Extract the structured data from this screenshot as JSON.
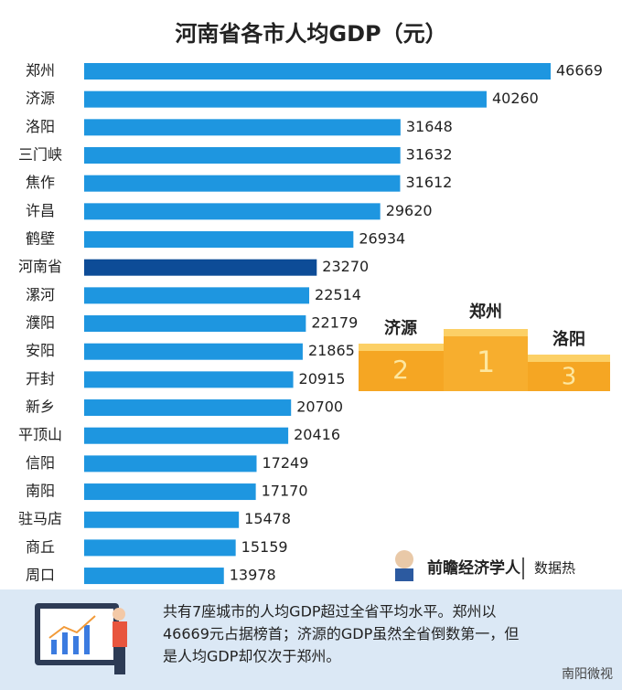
{
  "chart_data": {
    "type": "hbar",
    "title": "河南省各市人均GDP（元）",
    "categories": [
      "郑州",
      "济源",
      "洛阳",
      "三门峡",
      "焦作",
      "许昌",
      "鹤壁",
      "河南省",
      "漯河",
      "濮阳",
      "安阳",
      "开封",
      "新乡",
      "平顶山",
      "信阳",
      "南阳",
      "驻马店",
      "商丘",
      "周口"
    ],
    "values": [
      46669,
      40260,
      31648,
      31632,
      31612,
      29620,
      26934,
      23270,
      22514,
      22179,
      21865,
      20915,
      20700,
      20416,
      17249,
      17170,
      15478,
      15159,
      13978
    ],
    "colors": [
      "#1e96e0",
      "#1e96e0",
      "#1e96e0",
      "#1e96e0",
      "#1e96e0",
      "#1e96e0",
      "#1e96e0",
      "#0d4c97",
      "#1e96e0",
      "#1e96e0",
      "#1e96e0",
      "#1e96e0",
      "#1e96e0",
      "#1e96e0",
      "#1e96e0",
      "#1e96e0",
      "#1e96e0",
      "#1e96e0",
      "#1e96e0"
    ]
  },
  "podium": [
    {
      "name": "济源",
      "rank": 2
    },
    {
      "name": "郑州",
      "rank": 1
    },
    {
      "name": "洛阳",
      "rank": 3
    }
  ],
  "brand": {
    "name": "前瞻经济学人",
    "tag": "数据热"
  },
  "note": {
    "lines": [
      "共有7座城市的人均GDP超过全省平均水平。郑州以",
      "46669元占据榜首；济源的GDP虽然全省倒数第一，但",
      "是人均GDP却仅次于郑州。"
    ]
  },
  "footer": "南阳微视"
}
